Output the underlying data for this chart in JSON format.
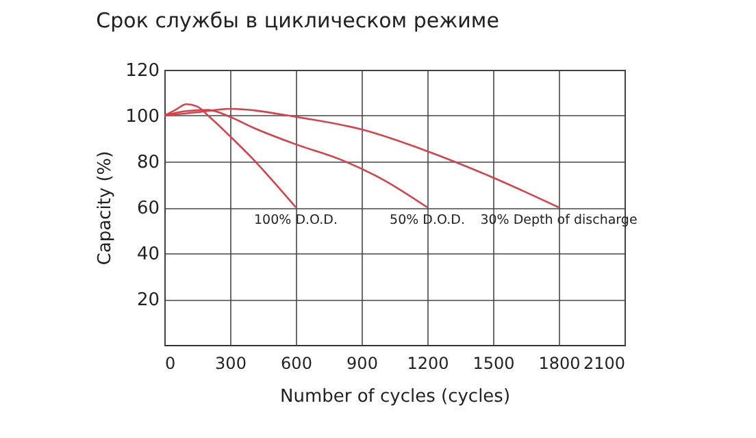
{
  "chart_data": {
    "type": "line",
    "title": "Срок службы в циклическом режиме",
    "xlabel": "Number of cycles (cycles)",
    "ylabel": "Capacity (%)",
    "xlim": [
      0,
      2100
    ],
    "xticks": [
      0,
      300,
      600,
      900,
      1200,
      1500,
      1800,
      2100
    ],
    "ylim": [
      0,
      120
    ],
    "yticks": [
      20,
      40,
      60,
      80,
      100,
      120
    ],
    "grid": true,
    "legend": false,
    "series": [
      {
        "name": "100% D.O.D.",
        "color": "#d9414a",
        "x": [
          0,
          50,
          100,
          150,
          200,
          300,
          400,
          500,
          600
        ],
        "values": [
          100,
          102.5,
          105,
          104,
          100,
          91,
          81.5,
          71,
          60
        ]
      },
      {
        "name": "50% D.O.D.",
        "color": "#d9414a",
        "x": [
          0,
          100,
          200,
          300,
          400,
          600,
          800,
          1000,
          1200
        ],
        "values": [
          100,
          102,
          102.5,
          99.5,
          95,
          87.5,
          81,
          72,
          60
        ]
      },
      {
        "name": "30% Depth of discharge",
        "color": "#d9414a",
        "x": [
          0,
          150,
          300,
          600,
          900,
          1200,
          1500,
          1800
        ],
        "values": [
          100,
          101.5,
          103,
          99.5,
          94,
          84.5,
          73,
          60
        ]
      }
    ]
  }
}
